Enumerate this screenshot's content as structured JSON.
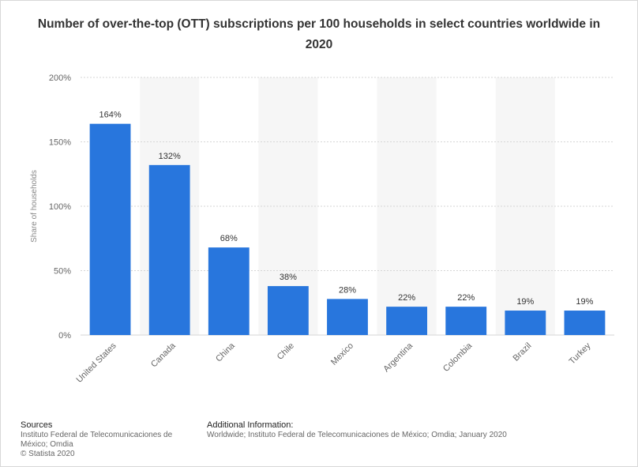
{
  "title": "Number of over-the-top (OTT) subscriptions per 100 households in select countries worldwide in 2020",
  "chart_data": {
    "type": "bar",
    "categories": [
      "United States",
      "Canada",
      "China",
      "Chile",
      "Mexico",
      "Argentina",
      "Colombia",
      "Brazil",
      "Turkey"
    ],
    "values": [
      164,
      132,
      68,
      38,
      28,
      22,
      22,
      19,
      19
    ],
    "value_labels": [
      "164%",
      "132%",
      "68%",
      "38%",
      "28%",
      "22%",
      "22%",
      "19%",
      "19%"
    ],
    "ylabel": "Share of households",
    "ylim": [
      0,
      200
    ],
    "yticks": [
      0,
      50,
      100,
      150,
      200
    ],
    "ytick_labels": [
      "0%",
      "50%",
      "100%",
      "150%",
      "200%"
    ],
    "bar_color": "#2876dd",
    "grid": true,
    "legend": "none"
  },
  "footer": {
    "sources_heading": "Sources",
    "sources_lines": [
      "Instituto Federal de Telecomunicaciones de",
      "México; Omdia",
      "© Statista 2020"
    ],
    "additional_heading": "Additional Information:",
    "additional_text": "Worldwide; Instituto Federal de Telecomunicaciones de México; Omdia; January 2020"
  }
}
